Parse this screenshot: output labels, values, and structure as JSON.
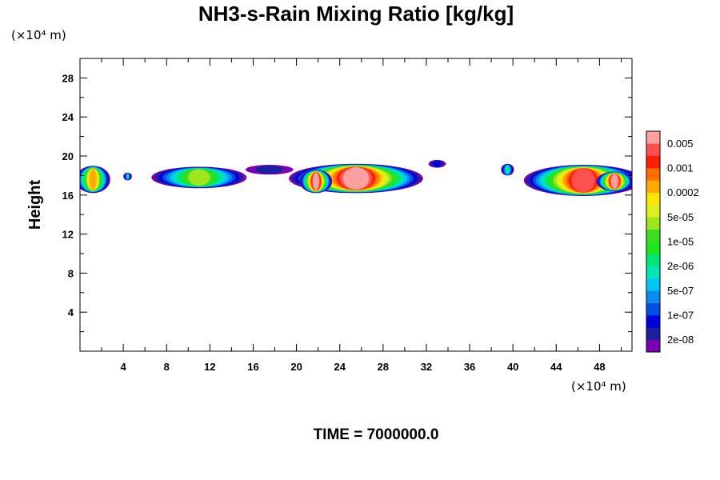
{
  "chart_data": {
    "type": "heatmap",
    "title": "NH3-s-Rain Mixing Ratio [kg/kg]",
    "ylabel": "Height",
    "x_unit_label": "(×10⁴ m)",
    "y_unit_label": "(×10⁴ m)",
    "footer": "TIME = 7000000.0",
    "xlim": [
      0,
      51
    ],
    "ylim": [
      0,
      30
    ],
    "x_ticks": [
      "4",
      "8",
      "12",
      "16",
      "20",
      "24",
      "28",
      "32",
      "36",
      "40",
      "44",
      "48"
    ],
    "x_tick_values": [
      4,
      8,
      12,
      16,
      20,
      24,
      28,
      32,
      36,
      40,
      44,
      48
    ],
    "y_ticks": [
      "4",
      "8",
      "12",
      "16",
      "20",
      "24",
      "28"
    ],
    "y_tick_values": [
      4,
      8,
      12,
      16,
      20,
      24,
      28
    ],
    "colorbar": {
      "colors": [
        "#7a00b4",
        "#1e1ea0",
        "#0000dc",
        "#0050e6",
        "#0a8cf0",
        "#00c8f0",
        "#00e6b4",
        "#00e678",
        "#1ee61e",
        "#3cdc1e",
        "#a0e61e",
        "#dcf01e",
        "#ffe600",
        "#ffaa00",
        "#ff6e00",
        "#ff1e00",
        "#ff5050",
        "#ffa0a0"
      ],
      "labels": [
        "2e-08",
        "1e-07",
        "5e-07",
        "2e-06",
        "1e-05",
        "5e-05",
        "0.0002",
        "0.001",
        "0.005"
      ]
    },
    "clouds": [
      {
        "cx": 1.2,
        "cy": 17.6,
        "rx": 1.6,
        "ry": 1.4,
        "peak": 0.8
      },
      {
        "cx": 4.4,
        "cy": 17.9,
        "rx": 0.4,
        "ry": 0.4,
        "peak": 0.35
      },
      {
        "cx": 11.0,
        "cy": 17.8,
        "rx": 4.4,
        "ry": 1.1,
        "peak": 0.62
      },
      {
        "cx": 17.5,
        "cy": 18.6,
        "rx": 2.2,
        "ry": 0.5,
        "peak": 0.1
      },
      {
        "cx": 25.5,
        "cy": 17.7,
        "rx": 6.2,
        "ry": 1.5,
        "peak": 0.98
      },
      {
        "cx": 21.8,
        "cy": 17.4,
        "rx": 1.5,
        "ry": 1.2,
        "peak": 1.0
      },
      {
        "cx": 33.0,
        "cy": 19.2,
        "rx": 0.8,
        "ry": 0.4,
        "peak": 0.15
      },
      {
        "cx": 39.5,
        "cy": 18.6,
        "rx": 0.6,
        "ry": 0.6,
        "peak": 0.4
      },
      {
        "cx": 46.5,
        "cy": 17.5,
        "rx": 5.5,
        "ry": 1.6,
        "peak": 0.95
      },
      {
        "cx": 49.4,
        "cy": 17.4,
        "rx": 1.7,
        "ry": 1.0,
        "peak": 1.0
      }
    ]
  }
}
